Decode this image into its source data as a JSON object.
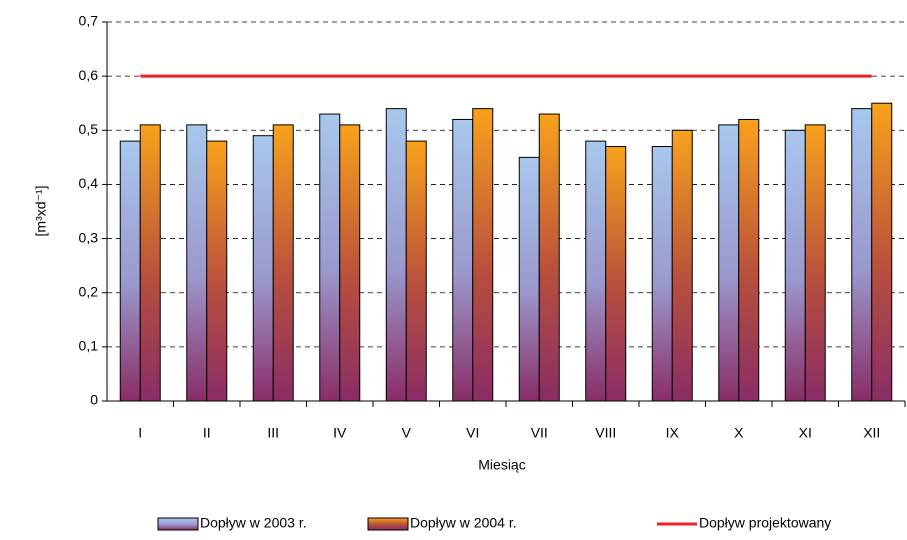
{
  "chart_data": {
    "type": "bar",
    "x_label": "Miesiąc",
    "y_label": "[m³xd⁻¹]",
    "categories": [
      "I",
      "II",
      "III",
      "IV",
      "V",
      "VI",
      "VII",
      "VIII",
      "IX",
      "X",
      "XI",
      "XII"
    ],
    "series": [
      {
        "name": "Dopływ w 2003 r.",
        "type": "bar",
        "color": "#a8c8ee",
        "values": [
          0.48,
          0.51,
          0.49,
          0.53,
          0.54,
          0.52,
          0.45,
          0.48,
          0.47,
          0.51,
          0.5,
          0.54
        ]
      },
      {
        "name": "Dopływ w 2004 r.",
        "type": "bar",
        "color": "#f8a21c",
        "values": [
          0.51,
          0.48,
          0.51,
          0.51,
          0.48,
          0.54,
          0.53,
          0.47,
          0.5,
          0.52,
          0.51,
          0.55
        ]
      },
      {
        "name": "Dopływ projektowany",
        "type": "line",
        "color": "#ee2222",
        "values": [
          0.6,
          0.6,
          0.6,
          0.6,
          0.6,
          0.6,
          0.6,
          0.6,
          0.6,
          0.6,
          0.6,
          0.6
        ]
      }
    ],
    "ylim": [
      0,
      0.7
    ],
    "yticks": [
      0,
      {
        "value": 0.1,
        "label": "0,1"
      },
      {
        "value": 0.2,
        "label": "0,2"
      },
      {
        "value": 0.3,
        "label": "0,3"
      },
      {
        "value": 0.4,
        "label": "0,4"
      },
      {
        "value": 0.5,
        "label": "0,5"
      },
      {
        "value": 0.6,
        "label": "0,6"
      },
      {
        "value": 0.7,
        "label": "0,7"
      }
    ],
    "grid": true,
    "legend": "bottom"
  }
}
